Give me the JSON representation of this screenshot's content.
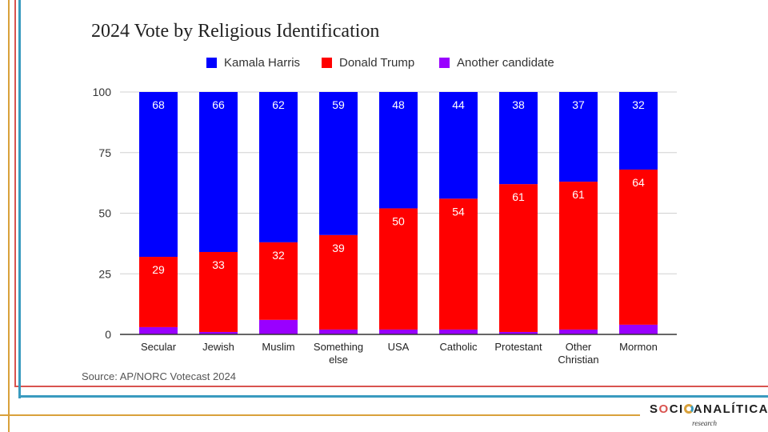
{
  "colors": {
    "harris": "#0000ff",
    "trump": "#ff0000",
    "other": "#9900ff",
    "frame_orange": "#d9a13b",
    "frame_red": "#d9534f",
    "frame_teal": "#3a9bbf"
  },
  "chart_data": {
    "type": "bar",
    "stacked": true,
    "title": "2024 Vote by Religious Identification",
    "categories": [
      "Secular",
      "Jewish",
      "Muslim",
      "Something else",
      "USA",
      "Catholic",
      "Protestant",
      "Other Christian",
      "Mormon"
    ],
    "series": [
      {
        "name": "Another candidate",
        "color": "#9900ff",
        "values": [
          3,
          1,
          6,
          2,
          2,
          2,
          1,
          2,
          4
        ]
      },
      {
        "name": "Donald Trump",
        "color": "#ff0000",
        "values": [
          29,
          33,
          32,
          39,
          50,
          54,
          61,
          61,
          64
        ]
      },
      {
        "name": "Kamala Harris",
        "color": "#0000ff",
        "values": [
          68,
          66,
          62,
          59,
          48,
          44,
          38,
          37,
          32
        ]
      }
    ],
    "data_labels": {
      "Kamala Harris": [
        "68",
        "66",
        "62",
        "59",
        "48",
        "44",
        "38",
        "37",
        "32"
      ],
      "Donald Trump": [
        "29",
        "33",
        "32",
        "39",
        "50",
        "54",
        "61",
        "61",
        "64"
      ]
    },
    "legend": [
      "Kamala Harris",
      "Donald Trump",
      "Another candidate"
    ],
    "legend_position": "top",
    "y_ticks": [
      "0",
      "25",
      "50",
      "75",
      "100"
    ],
    "ylim": [
      0,
      100
    ],
    "grid": true
  },
  "source": "Source: AP/NORC Votecast 2024",
  "logo": {
    "name": "SOCIOANALITICA",
    "sub": "research"
  }
}
